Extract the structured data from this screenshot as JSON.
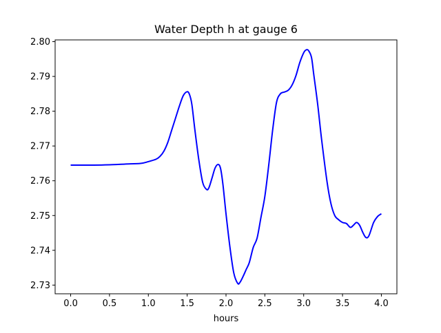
{
  "chart_data": {
    "type": "line",
    "title": "Water Depth h at gauge 6",
    "xlabel": "hours",
    "ylabel": "",
    "xlim": [
      -0.2,
      4.2
    ],
    "ylim": [
      2.7275,
      2.8005
    ],
    "xticks": [
      0.0,
      0.5,
      1.0,
      1.5,
      2.0,
      2.5,
      3.0,
      3.5,
      4.0
    ],
    "xtick_labels": [
      "0.0",
      "0.5",
      "1.0",
      "1.5",
      "2.0",
      "2.5",
      "3.0",
      "3.5",
      "4.0"
    ],
    "yticks": [
      2.73,
      2.74,
      2.75,
      2.76,
      2.77,
      2.78,
      2.79,
      2.8
    ],
    "ytick_labels": [
      "2.73",
      "2.74",
      "2.75",
      "2.76",
      "2.77",
      "2.78",
      "2.79",
      "2.80"
    ],
    "grid": false,
    "series": [
      {
        "color": "#0000ff",
        "x": [
          0.0,
          0.3,
          0.5,
          0.7,
          0.9,
          1.0,
          1.1,
          1.15,
          1.2,
          1.25,
          1.3,
          1.35,
          1.4,
          1.45,
          1.5,
          1.53,
          1.56,
          1.6,
          1.65,
          1.7,
          1.75,
          1.78,
          1.82,
          1.86,
          1.9,
          1.93,
          1.96,
          2.0,
          2.05,
          2.1,
          2.15,
          2.18,
          2.22,
          2.26,
          2.3,
          2.35,
          2.4,
          2.45,
          2.5,
          2.55,
          2.6,
          2.65,
          2.7,
          2.75,
          2.8,
          2.85,
          2.9,
          2.95,
          3.0,
          3.03,
          3.06,
          3.1,
          3.13,
          3.18,
          3.23,
          3.3,
          3.35,
          3.4,
          3.45,
          3.5,
          3.55,
          3.6,
          3.64,
          3.68,
          3.72,
          3.76,
          3.8,
          3.84,
          3.9,
          3.95,
          4.0
        ],
        "y": [
          2.7645,
          2.7645,
          2.7646,
          2.7648,
          2.765,
          2.7655,
          2.7662,
          2.767,
          2.7685,
          2.771,
          2.7745,
          2.778,
          2.7815,
          2.7845,
          2.7856,
          2.7848,
          2.782,
          2.7745,
          2.766,
          2.7595,
          2.7575,
          2.758,
          2.7608,
          2.7637,
          2.7647,
          2.7635,
          2.759,
          2.7505,
          2.741,
          2.7335,
          2.7305,
          2.7308,
          2.7325,
          2.7345,
          2.7365,
          2.7408,
          2.7435,
          2.7495,
          2.7555,
          2.7645,
          2.7745,
          2.7825,
          2.785,
          2.7855,
          2.786,
          2.7875,
          2.7902,
          2.794,
          2.7968,
          2.7976,
          2.7975,
          2.7955,
          2.7905,
          2.782,
          2.772,
          2.7598,
          2.7535,
          2.75,
          2.7488,
          2.748,
          2.7477,
          2.7466,
          2.7472,
          2.748,
          2.7472,
          2.7452,
          2.7437,
          2.7442,
          2.748,
          2.7497,
          2.7505
        ]
      }
    ]
  }
}
